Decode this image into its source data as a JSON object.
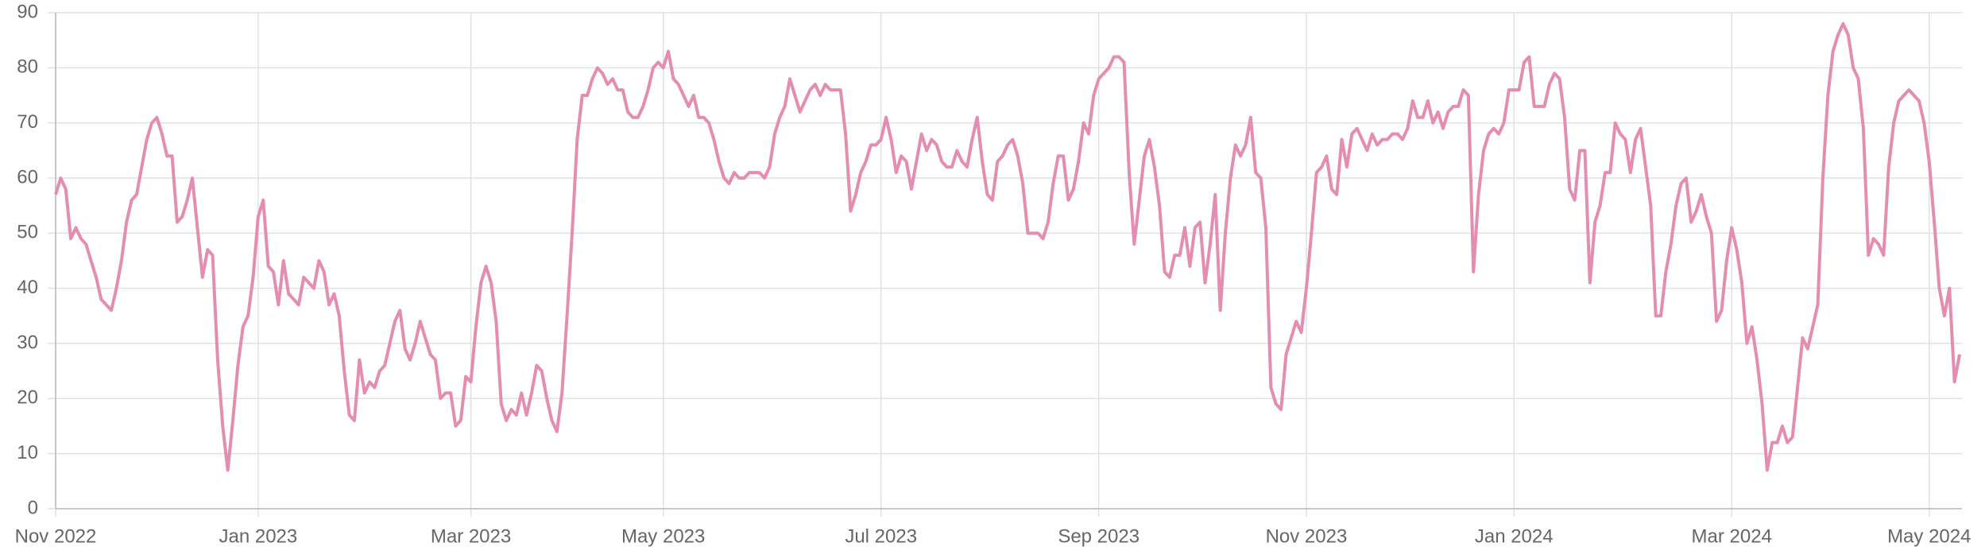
{
  "chart_data": {
    "type": "line",
    "categories": [
      "Nov 2022",
      null,
      null,
      null,
      null,
      null,
      null,
      null,
      null,
      null,
      null,
      null,
      null,
      null,
      null,
      null,
      null,
      null,
      null,
      null,
      null,
      null,
      null,
      null,
      null,
      null,
      null,
      null,
      null,
      null,
      null,
      null,
      null,
      null,
      null,
      null,
      null,
      null,
      null,
      null,
      "Jan 2023",
      null,
      null,
      null,
      null,
      null,
      null,
      null,
      null,
      null,
      null,
      null,
      null,
      null,
      null,
      null,
      null,
      null,
      null,
      null,
      null,
      null,
      null,
      null,
      null,
      null,
      null,
      null,
      null,
      null,
      null,
      null,
      null,
      null,
      null,
      null,
      null,
      null,
      null,
      null,
      null,
      null,
      "Mar 2023",
      null,
      null,
      null,
      null,
      null,
      null,
      null,
      null,
      null,
      null,
      null,
      null,
      null,
      null,
      null,
      null,
      null,
      null,
      null,
      null,
      null,
      null,
      null,
      null,
      null,
      null,
      null,
      null,
      null,
      null,
      null,
      null,
      null,
      null,
      null,
      null,
      null,
      "May 2023",
      null,
      null,
      null,
      null,
      null,
      null,
      null,
      null,
      null,
      null,
      null,
      null,
      null,
      null,
      null,
      null,
      null,
      null,
      null,
      null,
      null,
      null,
      null,
      null,
      null,
      null,
      null,
      null,
      null,
      null,
      null,
      null,
      null,
      null,
      null,
      null,
      null,
      null,
      null,
      null,
      null,
      null,
      "Jul 2023",
      null,
      null,
      null,
      null,
      null,
      null,
      null,
      null,
      null,
      null,
      null,
      null,
      null,
      null,
      null,
      null,
      null,
      null,
      null,
      null,
      null,
      null,
      null,
      null,
      null,
      null,
      null,
      null,
      null,
      null,
      null,
      null,
      null,
      null,
      null,
      null,
      null,
      null,
      null,
      null,
      null,
      null,
      "Sep 2023",
      null,
      null,
      null,
      null,
      null,
      null,
      null,
      null,
      null,
      null,
      null,
      null,
      null,
      null,
      null,
      null,
      null,
      null,
      null,
      null,
      null,
      null,
      null,
      null,
      null,
      null,
      null,
      null,
      null,
      null,
      null,
      null,
      null,
      null,
      null,
      null,
      null,
      null,
      null,
      null,
      "Nov 2023",
      null,
      null,
      null,
      null,
      null,
      null,
      null,
      null,
      null,
      null,
      null,
      null,
      null,
      null,
      null,
      null,
      null,
      null,
      null,
      null,
      null,
      null,
      null,
      null,
      null,
      null,
      null,
      null,
      null,
      null,
      null,
      null,
      null,
      null,
      null,
      null,
      null,
      null,
      null,
      null,
      "Jan 2024",
      null,
      null,
      null,
      null,
      null,
      null,
      null,
      null,
      null,
      null,
      null,
      null,
      null,
      null,
      null,
      null,
      null,
      null,
      null,
      null,
      null,
      null,
      null,
      null,
      null,
      null,
      null,
      null,
      null,
      null,
      null,
      null,
      null,
      null,
      null,
      null,
      null,
      null,
      null,
      null,
      null,
      null,
      "Mar 2024",
      null,
      null,
      null,
      null,
      null,
      null,
      null,
      null,
      null,
      null,
      null,
      null,
      null,
      null,
      null,
      null,
      null,
      null,
      null,
      null,
      null,
      null,
      null,
      null,
      null,
      null,
      null,
      null,
      null,
      null,
      null,
      null,
      null,
      null,
      null,
      null,
      null,
      null,
      "May 2024",
      null,
      null,
      null,
      null,
      null,
      null
    ],
    "series": [
      {
        "color": "#e48db0",
        "values": [
          57,
          60,
          58,
          49,
          51,
          49,
          48,
          45,
          42,
          38,
          37,
          36,
          40,
          45,
          52,
          56,
          57,
          62,
          67,
          70,
          71,
          68,
          64,
          64,
          52,
          53,
          56,
          60,
          51,
          42,
          47,
          46,
          27,
          15,
          7,
          16,
          26,
          33,
          35,
          42,
          53,
          56,
          44,
          43,
          37,
          45,
          39,
          38,
          37,
          42,
          41,
          40,
          45,
          43,
          37,
          39,
          35,
          25,
          17,
          16,
          27,
          21,
          23,
          22,
          25,
          26,
          30,
          34,
          36,
          29,
          27,
          30,
          34,
          31,
          28,
          27,
          20,
          21,
          21,
          15,
          16,
          24,
          23,
          33,
          41,
          44,
          41,
          34,
          19,
          16,
          18,
          17,
          21,
          17,
          21,
          26,
          25,
          20,
          16,
          14,
          21,
          35,
          50,
          67,
          75,
          75,
          78,
          80,
          79,
          77,
          78,
          76,
          76,
          72,
          71,
          71,
          73,
          76,
          80,
          81,
          80,
          83,
          78,
          77,
          75,
          73,
          75,
          71,
          71,
          70,
          67,
          63,
          60,
          59,
          61,
          60,
          60,
          61,
          61,
          61,
          60,
          62,
          68,
          71,
          73,
          78,
          75,
          72,
          74,
          76,
          77,
          75,
          77,
          76,
          76,
          76,
          68,
          54,
          57,
          61,
          63,
          66,
          66,
          67,
          71,
          67,
          61,
          64,
          63,
          58,
          63,
          68,
          65,
          67,
          66,
          63,
          62,
          62,
          65,
          63,
          62,
          67,
          71,
          63,
          57,
          56,
          63,
          64,
          66,
          67,
          64,
          59,
          50,
          50,
          50,
          49,
          52,
          59,
          64,
          64,
          56,
          58,
          63,
          70,
          68,
          75,
          78,
          79,
          80,
          82,
          82,
          81,
          61,
          48,
          56,
          64,
          67,
          62,
          55,
          43,
          42,
          46,
          46,
          51,
          44,
          51,
          52,
          41,
          48,
          57,
          36,
          50,
          60,
          66,
          64,
          66,
          71,
          61,
          60,
          51,
          22,
          19,
          18,
          28,
          31,
          34,
          32,
          40,
          50,
          61,
          62,
          64,
          58,
          57,
          67,
          62,
          68,
          69,
          67,
          65,
          68,
          66,
          67,
          67,
          68,
          68,
          67,
          69,
          74,
          71,
          71,
          74,
          70,
          72,
          69,
          72,
          73,
          73,
          76,
          75,
          43,
          57,
          65,
          68,
          69,
          68,
          70,
          76,
          76,
          76,
          81,
          82,
          73,
          73,
          73,
          77,
          79,
          78,
          71,
          58,
          56,
          65,
          65,
          41,
          52,
          55,
          61,
          61,
          70,
          68,
          67,
          61,
          67,
          69,
          62,
          55,
          35,
          35,
          43,
          48,
          55,
          59,
          60,
          52,
          54,
          57,
          53,
          50,
          34,
          36,
          45,
          51,
          47,
          41,
          30,
          33,
          27,
          19,
          7,
          12,
          12,
          15,
          12,
          13,
          22,
          31,
          29,
          33,
          37,
          60,
          75,
          83,
          86,
          88,
          86,
          80,
          78,
          69,
          46,
          49,
          48,
          46,
          62,
          70,
          74,
          75,
          76,
          75,
          74,
          70,
          63,
          52,
          40,
          35,
          40,
          23,
          28
        ]
      }
    ],
    "ylim": [
      0,
      90
    ],
    "yticks": [
      0,
      10,
      20,
      30,
      40,
      50,
      60,
      70,
      80,
      90
    ],
    "grid": true
  }
}
